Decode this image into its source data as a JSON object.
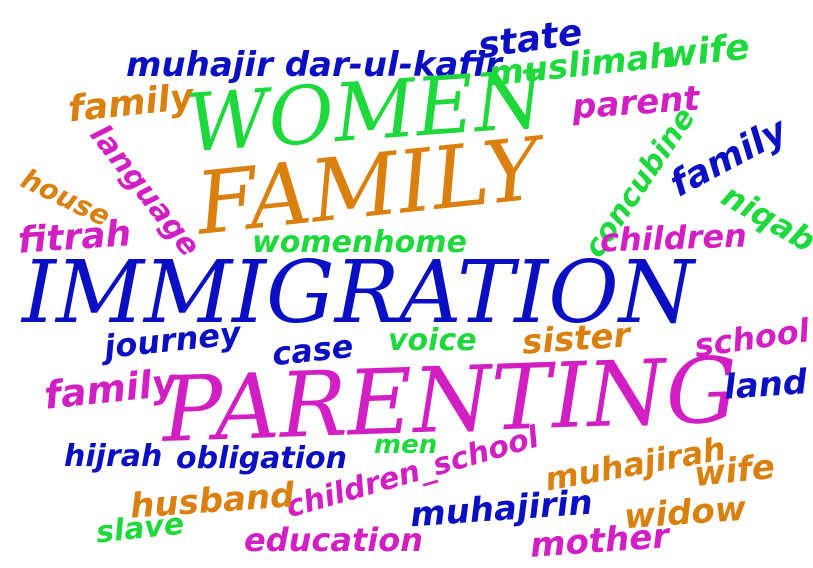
{
  "palette": {
    "blue": "#0a0fc4",
    "green": "#1ed83c",
    "orange": "#d9800f",
    "magenta": "#d21fc3"
  },
  "words": {
    "state": "state",
    "muhajir_dar_ul_kafir": "muhajir dar-ul-kafir",
    "muslimah": "muslimah",
    "wife_top": "wife",
    "family_top": "family",
    "women": "WOMEN",
    "parent": "parent",
    "language": "language",
    "concubine": "concubine",
    "family_right": "family",
    "house": "house",
    "family_big": "FAMILY",
    "niqab": "niqab",
    "fitrah": "fitrah",
    "womenhome": "womenhome",
    "children": "children",
    "immigration": "IMMIGRATION",
    "journey": "journey",
    "case": "case",
    "voice": "voice",
    "sister": "sister",
    "school": "school",
    "family_left": "family",
    "parenting": "PARENTING",
    "land": "land",
    "men": "men",
    "hijrah": "hijrah",
    "obligation": "obligation",
    "children_school": "children_school",
    "muhajirah": "muhajirah",
    "wife_bottom": "wife",
    "husband": "husband",
    "muhajirin": "muhajirin",
    "widow": "widow",
    "slave": "slave",
    "education": "education",
    "mother": "mother"
  }
}
